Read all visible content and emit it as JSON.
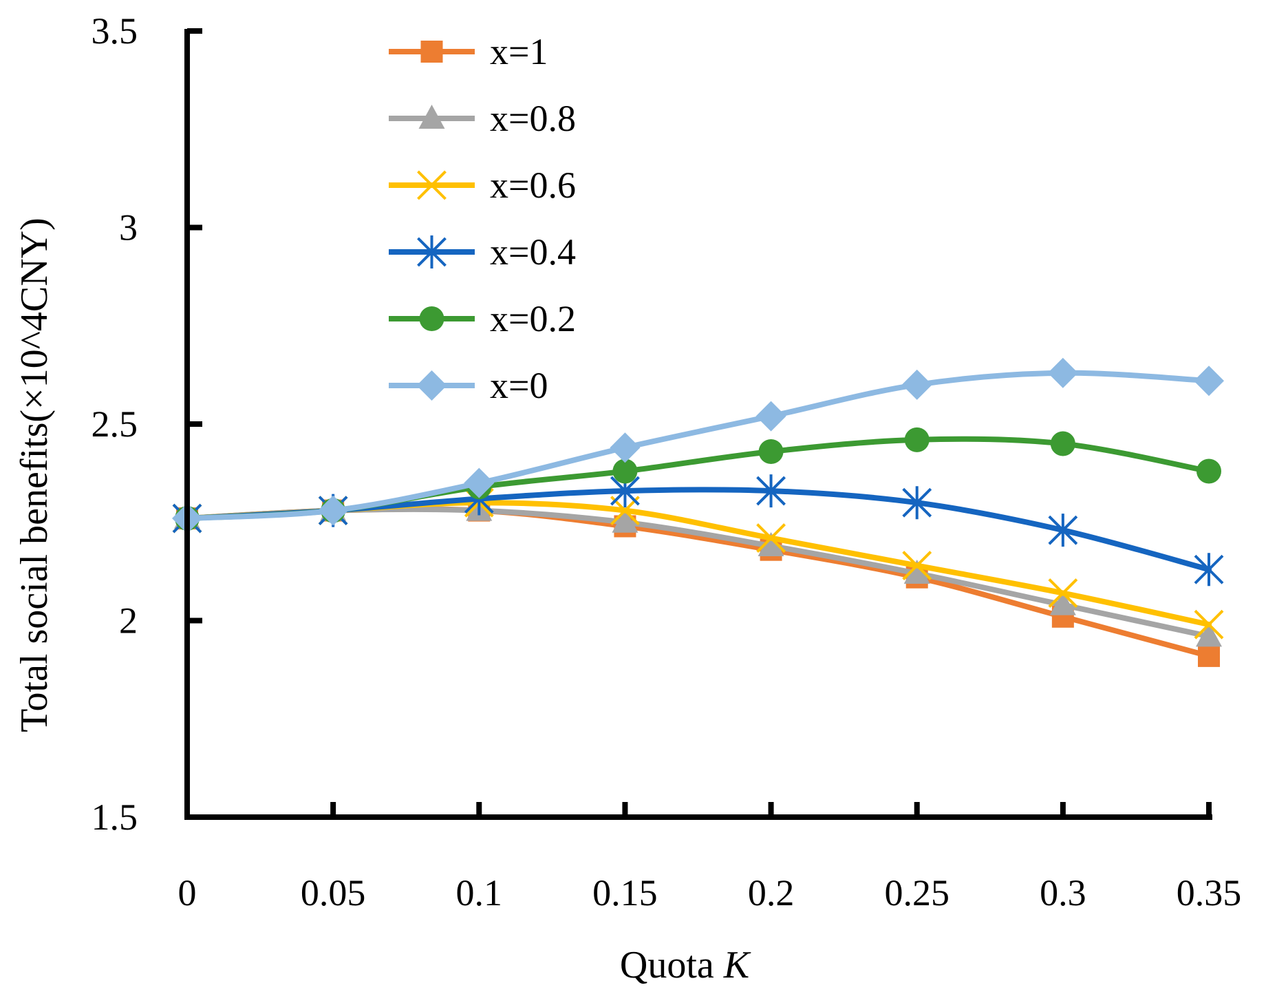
{
  "chart_data": {
    "type": "line",
    "title": "",
    "xlabel": "Quota",
    "xlabel_italic": "K",
    "ylabel": "Total social benefits(×10^4CNY)",
    "x": [
      0,
      0.05,
      0.1,
      0.15,
      0.2,
      0.25,
      0.3,
      0.35
    ],
    "x_tick_labels": [
      "0",
      "0.05",
      "0.1",
      "0.15",
      "0.2",
      "0.25",
      "0.3",
      "0.35"
    ],
    "ylim": [
      1.5,
      3.5
    ],
    "y_ticks": [
      1.5,
      2,
      2.5,
      3,
      3.5
    ],
    "y_tick_labels": [
      "1.5",
      "2",
      "2.5",
      "3",
      "3.5"
    ],
    "legend_position": "top-left",
    "grid": false,
    "series": [
      {
        "name": "x=1",
        "color": "#ED7D31",
        "marker": "square",
        "values": [
          2.26,
          2.28,
          2.28,
          2.24,
          2.18,
          2.11,
          2.01,
          1.91
        ]
      },
      {
        "name": "x=0.8",
        "color": "#A5A5A5",
        "marker": "triangle",
        "values": [
          2.26,
          2.28,
          2.28,
          2.25,
          2.19,
          2.12,
          2.04,
          1.96
        ]
      },
      {
        "name": "x=0.6",
        "color": "#FFC000",
        "marker": "x",
        "values": [
          2.26,
          2.28,
          2.3,
          2.28,
          2.21,
          2.14,
          2.07,
          1.99
        ]
      },
      {
        "name": "x=0.4",
        "color": "#1565C0",
        "marker": "star",
        "values": [
          2.26,
          2.28,
          2.31,
          2.33,
          2.33,
          2.3,
          2.23,
          2.13
        ]
      },
      {
        "name": "x=0.2",
        "color": "#3C9A32",
        "marker": "circle",
        "values": [
          2.26,
          2.28,
          2.34,
          2.38,
          2.43,
          2.46,
          2.45,
          2.38
        ]
      },
      {
        "name": "x=0",
        "color": "#8DB9E2",
        "marker": "diamond",
        "values": [
          2.26,
          2.28,
          2.35,
          2.44,
          2.52,
          2.6,
          2.63,
          2.61
        ]
      }
    ]
  }
}
